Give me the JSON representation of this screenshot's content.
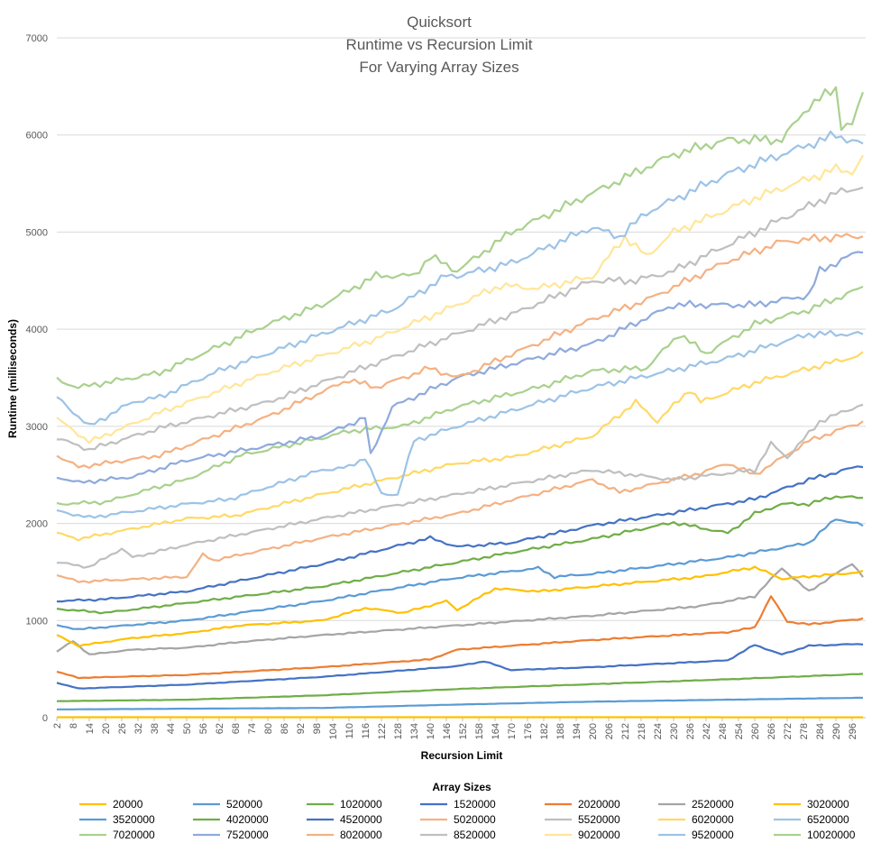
{
  "chart_data": {
    "type": "line",
    "title": [
      "Quicksort",
      "Runtime vs Recursion Limit",
      "For Varying Array Sizes"
    ],
    "xlabel": "Recursion Limit",
    "ylabel": "Runtime (milliseconds)",
    "ylim": [
      0,
      7000
    ],
    "y_ticks": [
      0,
      1000,
      2000,
      3000,
      4000,
      5000,
      6000,
      7000
    ],
    "xlim": [
      2,
      301
    ],
    "x_step": 2,
    "x_tick_labels": [
      2,
      8,
      14,
      20,
      26,
      32,
      38,
      44,
      50,
      56,
      62,
      68,
      74,
      80,
      86,
      92,
      98,
      104,
      110,
      116,
      122,
      128,
      134,
      140,
      146,
      152,
      158,
      164,
      170,
      176,
      182,
      188,
      194,
      200,
      206,
      212,
      218,
      224,
      230,
      236,
      242,
      248,
      254,
      260,
      266,
      272,
      278,
      284,
      290,
      296
    ],
    "grid": true,
    "legend_title": "Array Sizes",
    "legend_position": "bottom",
    "series": [
      {
        "name": "20000",
        "color": "#FFC000",
        "points": [
          [
            2,
            5
          ],
          [
            300,
            4
          ]
        ]
      },
      {
        "name": "520000",
        "color": "#5B9BD5",
        "points": [
          [
            2,
            85
          ],
          [
            100,
            100
          ],
          [
            150,
            135
          ],
          [
            200,
            165
          ],
          [
            250,
            185
          ],
          [
            300,
            205
          ]
        ]
      },
      {
        "name": "1020000",
        "color": "#70AD47",
        "points": [
          [
            2,
            170
          ],
          [
            50,
            185
          ],
          [
            100,
            230
          ],
          [
            150,
            295
          ],
          [
            200,
            345
          ],
          [
            250,
            395
          ],
          [
            300,
            450
          ]
        ]
      },
      {
        "name": "1520000",
        "color": "#4472C4",
        "points": [
          [
            2,
            360
          ],
          [
            10,
            300
          ],
          [
            50,
            340
          ],
          [
            100,
            420
          ],
          [
            150,
            530
          ],
          [
            160,
            580
          ],
          [
            170,
            490
          ],
          [
            200,
            520
          ],
          [
            250,
            590
          ],
          [
            260,
            750
          ],
          [
            270,
            650
          ],
          [
            280,
            740
          ],
          [
            300,
            760
          ]
        ]
      },
      {
        "name": "2020000",
        "color": "#ED7D31",
        "points": [
          [
            2,
            475
          ],
          [
            10,
            410
          ],
          [
            50,
            440
          ],
          [
            100,
            520
          ],
          [
            140,
            600
          ],
          [
            150,
            700
          ],
          [
            200,
            800
          ],
          [
            250,
            880
          ],
          [
            260,
            930
          ],
          [
            266,
            1250
          ],
          [
            272,
            990
          ],
          [
            280,
            960
          ],
          [
            300,
            1020
          ]
        ]
      },
      {
        "name": "2520000",
        "color": "#A5A5A5",
        "points": [
          [
            2,
            680
          ],
          [
            8,
            790
          ],
          [
            14,
            650
          ],
          [
            30,
            700
          ],
          [
            50,
            720
          ],
          [
            70,
            780
          ],
          [
            100,
            850
          ],
          [
            150,
            950
          ],
          [
            200,
            1050
          ],
          [
            240,
            1150
          ],
          [
            260,
            1250
          ],
          [
            270,
            1540
          ],
          [
            280,
            1300
          ],
          [
            296,
            1590
          ],
          [
            300,
            1450
          ]
        ]
      },
      {
        "name": "3020000",
        "color": "#FFC000",
        "points": [
          [
            2,
            850
          ],
          [
            10,
            740
          ],
          [
            30,
            820
          ],
          [
            50,
            870
          ],
          [
            70,
            950
          ],
          [
            100,
            1000
          ],
          [
            116,
            1130
          ],
          [
            130,
            1080
          ],
          [
            146,
            1200
          ],
          [
            150,
            1110
          ],
          [
            164,
            1330
          ],
          [
            180,
            1300
          ],
          [
            200,
            1350
          ],
          [
            240,
            1450
          ],
          [
            260,
            1550
          ],
          [
            270,
            1430
          ],
          [
            300,
            1500
          ]
        ]
      },
      {
        "name": "3520000",
        "color": "#5B9BD5",
        "points": [
          [
            2,
            950
          ],
          [
            10,
            910
          ],
          [
            50,
            1000
          ],
          [
            100,
            1200
          ],
          [
            120,
            1300
          ],
          [
            150,
            1440
          ],
          [
            180,
            1540
          ],
          [
            186,
            1450
          ],
          [
            200,
            1480
          ],
          [
            250,
            1650
          ],
          [
            280,
            1800
          ],
          [
            290,
            2050
          ],
          [
            300,
            1980
          ]
        ]
      },
      {
        "name": "4020000",
        "color": "#70AD47",
        "points": [
          [
            2,
            1120
          ],
          [
            20,
            1080
          ],
          [
            50,
            1180
          ],
          [
            100,
            1350
          ],
          [
            150,
            1600
          ],
          [
            170,
            1700
          ],
          [
            200,
            1840
          ],
          [
            230,
            2010
          ],
          [
            250,
            1900
          ],
          [
            260,
            2100
          ],
          [
            270,
            2200
          ],
          [
            280,
            2200
          ],
          [
            290,
            2280
          ],
          [
            300,
            2260
          ]
        ]
      },
      {
        "name": "4520000",
        "color": "#4472C4",
        "points": [
          [
            2,
            1200
          ],
          [
            20,
            1220
          ],
          [
            50,
            1300
          ],
          [
            100,
            1580
          ],
          [
            140,
            1850
          ],
          [
            150,
            1760
          ],
          [
            170,
            1800
          ],
          [
            200,
            1980
          ],
          [
            230,
            2110
          ],
          [
            260,
            2250
          ],
          [
            280,
            2450
          ],
          [
            300,
            2600
          ]
        ]
      },
      {
        "name": "5020000",
        "color": "#F4B183",
        "points": [
          [
            2,
            1470
          ],
          [
            10,
            1400
          ],
          [
            50,
            1450
          ],
          [
            56,
            1680
          ],
          [
            60,
            1620
          ],
          [
            100,
            1850
          ],
          [
            150,
            2100
          ],
          [
            200,
            2450
          ],
          [
            210,
            2320
          ],
          [
            240,
            2520
          ],
          [
            250,
            2620
          ],
          [
            260,
            2500
          ],
          [
            280,
            2850
          ],
          [
            300,
            3050
          ]
        ]
      },
      {
        "name": "5520000",
        "color": "#BFBFBF",
        "points": [
          [
            2,
            1600
          ],
          [
            14,
            1550
          ],
          [
            26,
            1740
          ],
          [
            30,
            1650
          ],
          [
            50,
            1780
          ],
          [
            100,
            2050
          ],
          [
            120,
            2150
          ],
          [
            150,
            2300
          ],
          [
            200,
            2550
          ],
          [
            230,
            2450
          ],
          [
            260,
            2550
          ],
          [
            266,
            2820
          ],
          [
            272,
            2680
          ],
          [
            284,
            3050
          ],
          [
            300,
            3230
          ]
        ]
      },
      {
        "name": "6020000",
        "color": "#FFD966",
        "points": [
          [
            2,
            1900
          ],
          [
            10,
            1840
          ],
          [
            50,
            2050
          ],
          [
            68,
            2080
          ],
          [
            100,
            2300
          ],
          [
            150,
            2620
          ],
          [
            170,
            2680
          ],
          [
            200,
            2900
          ],
          [
            216,
            3250
          ],
          [
            224,
            3050
          ],
          [
            236,
            3380
          ],
          [
            240,
            3250
          ],
          [
            260,
            3450
          ],
          [
            300,
            3740
          ]
        ]
      },
      {
        "name": "6520000",
        "color": "#9DC3E6",
        "points": [
          [
            2,
            2130
          ],
          [
            14,
            2060
          ],
          [
            50,
            2200
          ],
          [
            66,
            2250
          ],
          [
            100,
            2550
          ],
          [
            110,
            2580
          ],
          [
            116,
            2680
          ],
          [
            122,
            2300
          ],
          [
            128,
            2300
          ],
          [
            134,
            2850
          ],
          [
            150,
            3000
          ],
          [
            200,
            3400
          ],
          [
            250,
            3700
          ],
          [
            280,
            3950
          ],
          [
            300,
            3950
          ]
        ]
      },
      {
        "name": "7020000",
        "color": "#A9D18E",
        "points": [
          [
            2,
            2200
          ],
          [
            20,
            2220
          ],
          [
            40,
            2380
          ],
          [
            50,
            2450
          ],
          [
            70,
            2700
          ],
          [
            100,
            2880
          ],
          [
            110,
            2950
          ],
          [
            120,
            2980
          ],
          [
            130,
            3000
          ],
          [
            150,
            3200
          ],
          [
            180,
            3400
          ],
          [
            200,
            3570
          ],
          [
            220,
            3600
          ],
          [
            232,
            3950
          ],
          [
            242,
            3750
          ],
          [
            260,
            4050
          ],
          [
            280,
            4200
          ],
          [
            300,
            4430
          ]
        ]
      },
      {
        "name": "7520000",
        "color": "#8FAADC",
        "points": [
          [
            2,
            2480
          ],
          [
            10,
            2420
          ],
          [
            30,
            2480
          ],
          [
            50,
            2650
          ],
          [
            100,
            2900
          ],
          [
            116,
            3090
          ],
          [
            118,
            2700
          ],
          [
            126,
            3200
          ],
          [
            150,
            3500
          ],
          [
            200,
            3850
          ],
          [
            230,
            4250
          ],
          [
            260,
            4250
          ],
          [
            280,
            4350
          ],
          [
            284,
            4600
          ],
          [
            300,
            4820
          ]
        ]
      },
      {
        "name": "8020000",
        "color": "#F4B183",
        "points": [
          [
            2,
            2700
          ],
          [
            10,
            2580
          ],
          [
            40,
            2700
          ],
          [
            80,
            3100
          ],
          [
            110,
            3480
          ],
          [
            120,
            3400
          ],
          [
            140,
            3600
          ],
          [
            150,
            3500
          ],
          [
            200,
            4100
          ],
          [
            220,
            4300
          ],
          [
            250,
            4700
          ],
          [
            270,
            4900
          ],
          [
            290,
            4950
          ],
          [
            300,
            4960
          ]
        ]
      },
      {
        "name": "8520000",
        "color": "#BFBFBF",
        "points": [
          [
            2,
            2880
          ],
          [
            14,
            2760
          ],
          [
            40,
            2980
          ],
          [
            80,
            3250
          ],
          [
            110,
            3550
          ],
          [
            140,
            3850
          ],
          [
            170,
            4150
          ],
          [
            200,
            4500
          ],
          [
            216,
            4500
          ],
          [
            230,
            4600
          ],
          [
            260,
            5000
          ],
          [
            290,
            5400
          ],
          [
            300,
            5470
          ]
        ]
      },
      {
        "name": "9020000",
        "color": "#FFE699",
        "points": [
          [
            2,
            3080
          ],
          [
            14,
            2840
          ],
          [
            40,
            3140
          ],
          [
            80,
            3550
          ],
          [
            120,
            3900
          ],
          [
            150,
            4250
          ],
          [
            166,
            4450
          ],
          [
            180,
            4420
          ],
          [
            200,
            4540
          ],
          [
            212,
            4950
          ],
          [
            220,
            4750
          ],
          [
            230,
            5000
          ],
          [
            260,
            5350
          ],
          [
            290,
            5650
          ],
          [
            296,
            5620
          ],
          [
            300,
            5760
          ]
        ]
      },
      {
        "name": "9520000",
        "color": "#9DC3E6",
        "points": [
          [
            2,
            3300
          ],
          [
            14,
            3000
          ],
          [
            30,
            3250
          ],
          [
            40,
            3300
          ],
          [
            60,
            3550
          ],
          [
            100,
            3950
          ],
          [
            126,
            4200
          ],
          [
            146,
            4550
          ],
          [
            150,
            4550
          ],
          [
            170,
            4680
          ],
          [
            200,
            5050
          ],
          [
            210,
            4950
          ],
          [
            220,
            5200
          ],
          [
            250,
            5600
          ],
          [
            270,
            5800
          ],
          [
            290,
            6000
          ],
          [
            300,
            5900
          ]
        ]
      },
      {
        "name": "10020000",
        "color": "#A9D18E",
        "points": [
          [
            2,
            3480
          ],
          [
            10,
            3400
          ],
          [
            40,
            3550
          ],
          [
            80,
            4050
          ],
          [
            100,
            4250
          ],
          [
            120,
            4550
          ],
          [
            134,
            4550
          ],
          [
            140,
            4750
          ],
          [
            150,
            4600
          ],
          [
            170,
            5000
          ],
          [
            200,
            5400
          ],
          [
            230,
            5800
          ],
          [
            250,
            5950
          ],
          [
            270,
            5950
          ],
          [
            280,
            6300
          ],
          [
            290,
            6480
          ],
          [
            292,
            6100
          ],
          [
            296,
            6100
          ],
          [
            300,
            6430
          ]
        ]
      }
    ]
  }
}
